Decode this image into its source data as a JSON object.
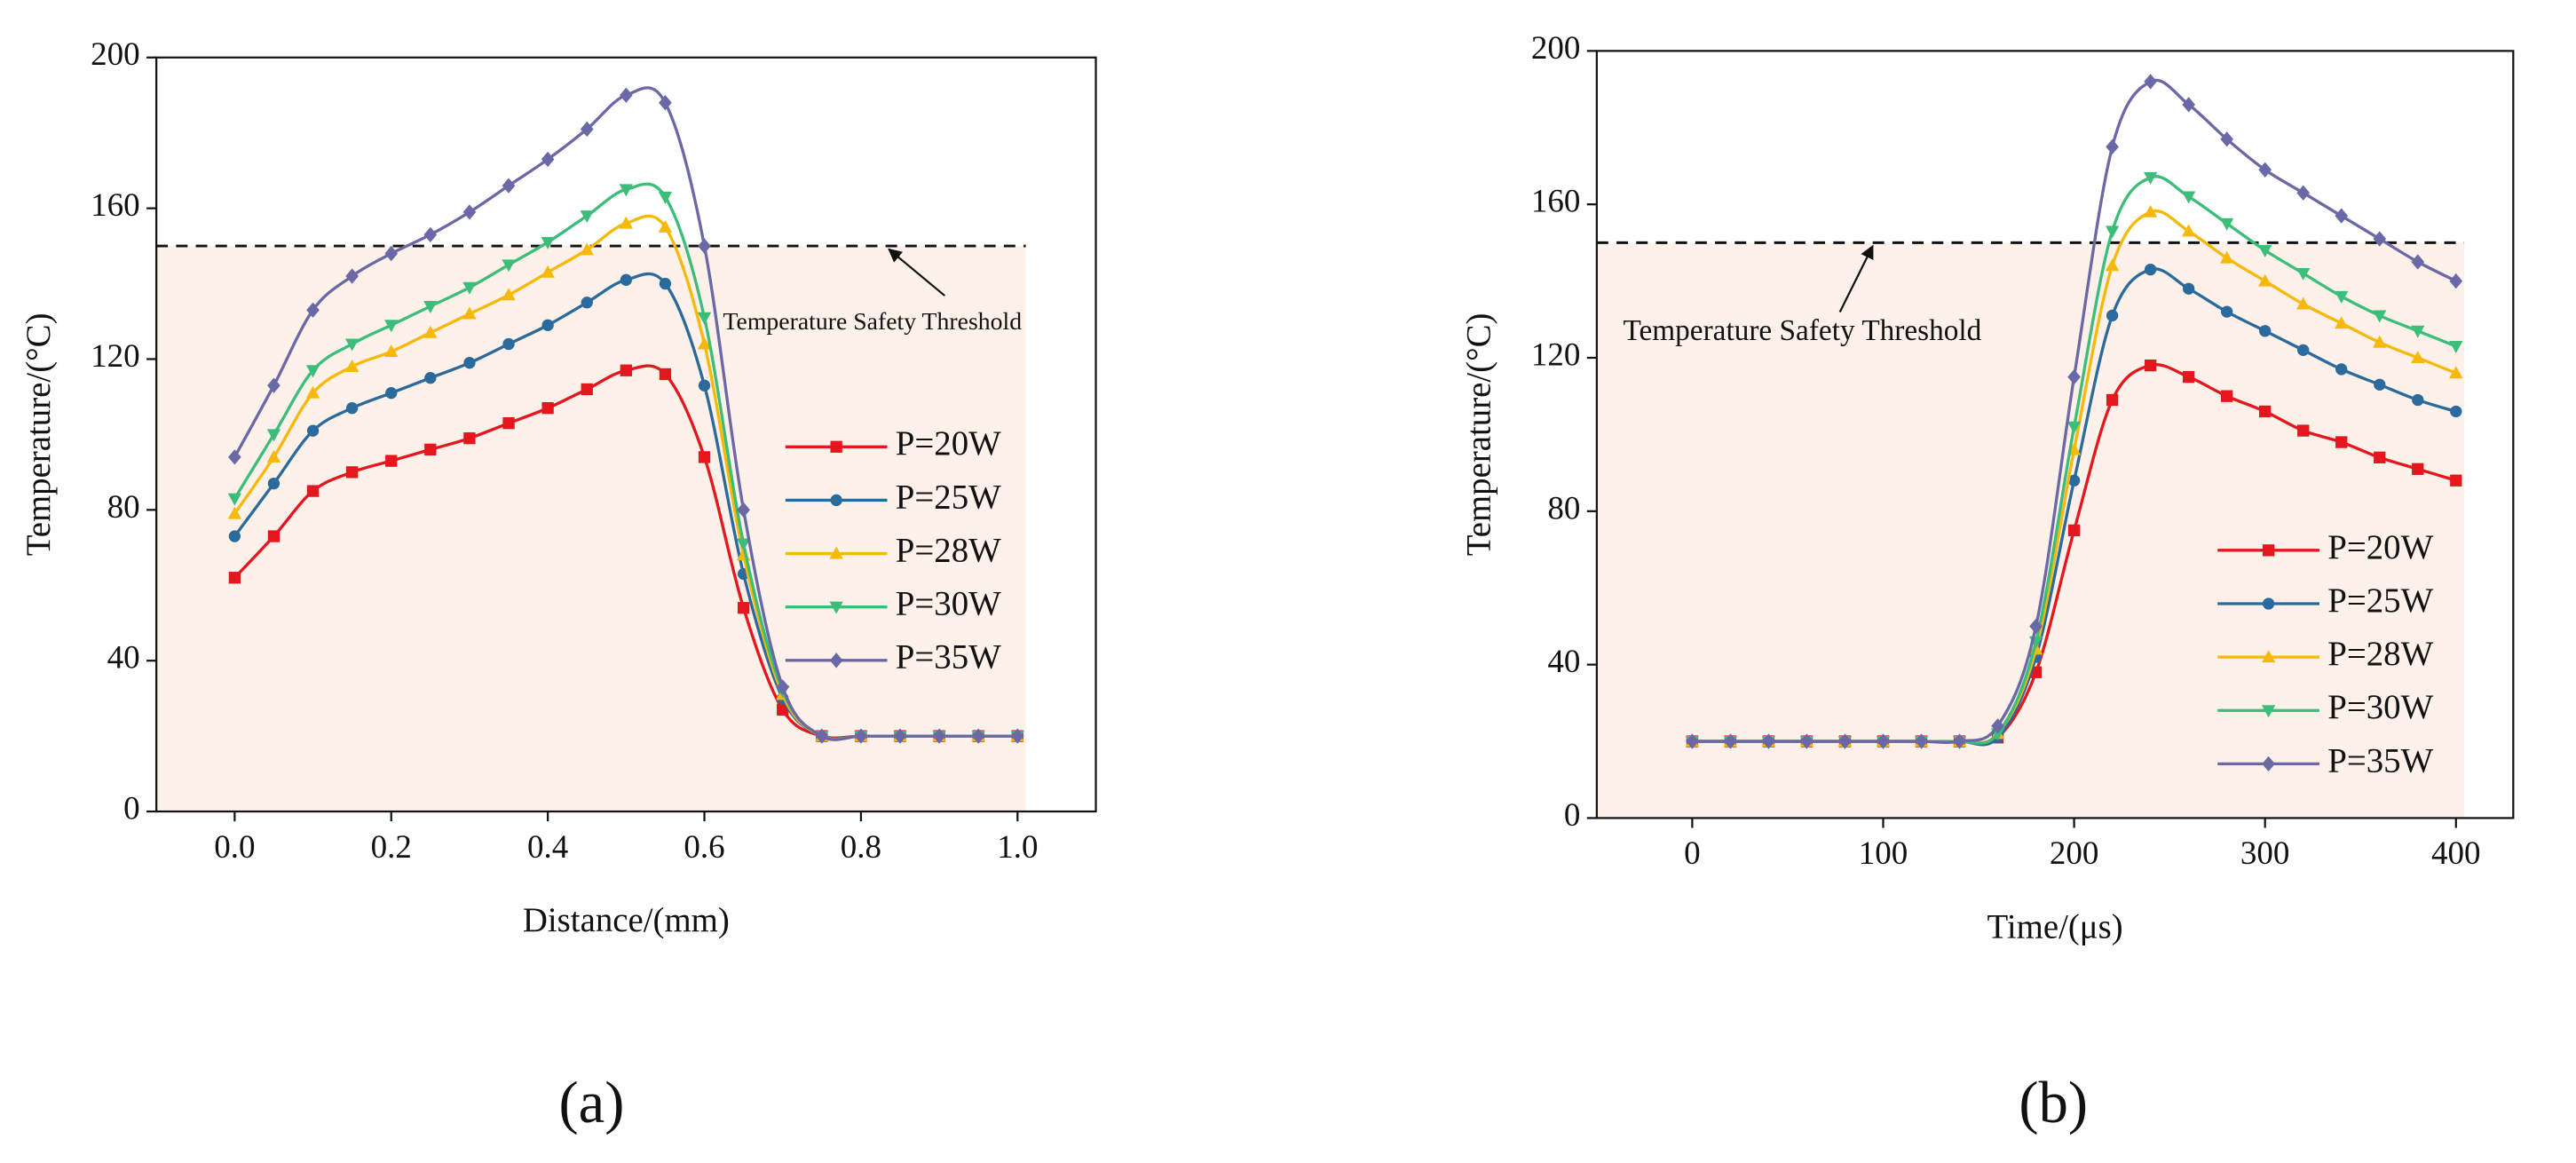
{
  "chart_data": [
    {
      "type": "line",
      "panel_label": "(a)",
      "xlabel": "Distance/(mm)",
      "ylabel": "Temperature/(°C)",
      "xlim": [
        -0.1,
        1.1
      ],
      "ylim": [
        0,
        200
      ],
      "xticks": [
        {
          "value": 0,
          "label": "0.0"
        },
        0.2,
        0.4,
        0.6,
        0.8,
        {
          "value": 1,
          "label": "1.0"
        }
      ],
      "yticks": [
        0,
        40,
        80,
        120,
        160,
        200
      ],
      "threshold": 150,
      "threshold_label": "Temperature Safety Threshold",
      "legend": "right",
      "x": [
        0,
        0.05,
        0.1,
        0.15,
        0.2,
        0.25,
        0.3,
        0.35,
        0.4,
        0.45,
        0.5,
        0.55,
        0.6,
        0.65,
        0.7,
        0.75,
        0.8,
        0.85,
        0.9,
        0.95,
        1.0
      ],
      "series": [
        {
          "name": "P=20W",
          "color": "#e5161e",
          "marker": "square",
          "values": [
            62,
            73,
            85,
            90,
            93,
            96,
            99,
            103,
            107,
            112,
            117,
            116,
            94,
            54,
            27,
            20,
            20,
            20,
            20,
            20,
            20
          ]
        },
        {
          "name": "P=25W",
          "color": "#2b6a9c",
          "marker": "circle",
          "values": [
            73,
            87,
            101,
            107,
            111,
            115,
            119,
            124,
            129,
            135,
            141,
            140,
            113,
            63,
            30,
            20,
            20,
            20,
            20,
            20,
            20
          ]
        },
        {
          "name": "P=28W",
          "color": "#f6b90a",
          "marker": "triangle-up",
          "values": [
            79,
            94,
            111,
            118,
            122,
            127,
            132,
            137,
            143,
            149,
            156,
            155,
            124,
            68,
            31,
            20,
            20,
            20,
            20,
            20,
            20
          ]
        },
        {
          "name": "P=30W",
          "color": "#3cbd7a",
          "marker": "triangle-down",
          "values": [
            83,
            100,
            117,
            124,
            129,
            134,
            139,
            145,
            151,
            158,
            165,
            163,
            131,
            71,
            32,
            20,
            20,
            20,
            20,
            20,
            20
          ]
        },
        {
          "name": "P=35W",
          "color": "#6a68a6",
          "marker": "diamond",
          "values": [
            94,
            113,
            133,
            142,
            148,
            153,
            159,
            166,
            173,
            181,
            190,
            188,
            150,
            80,
            33,
            20,
            20,
            20,
            20,
            20,
            20
          ]
        }
      ]
    },
    {
      "type": "line",
      "panel_label": "(b)",
      "xlabel": "Time/(μs)",
      "ylabel": "Temperature/(°C)",
      "xlim": [
        -50,
        430
      ],
      "ylim": [
        0,
        200
      ],
      "xticks": [
        0,
        100,
        200,
        300,
        400
      ],
      "yticks": [
        0,
        40,
        80,
        120,
        160,
        200
      ],
      "threshold": 150,
      "threshold_label": "Temperature Safety Threshold",
      "legend": "lower right",
      "x": [
        0,
        20,
        40,
        60,
        80,
        100,
        120,
        140,
        160,
        180,
        200,
        220,
        240,
        260,
        280,
        300,
        320,
        340,
        360,
        380,
        400
      ],
      "series": [
        {
          "name": "P=20W",
          "color": "#e5161e",
          "marker": "square",
          "values": [
            20,
            20,
            20,
            20,
            20,
            20,
            20,
            20,
            21,
            38,
            75,
            109,
            118,
            115,
            110,
            106,
            101,
            98,
            94,
            91,
            88
          ]
        },
        {
          "name": "P=25W",
          "color": "#2b6a9c",
          "marker": "circle",
          "values": [
            20,
            20,
            20,
            20,
            20,
            20,
            20,
            20,
            21,
            42,
            88,
            131,
            143,
            138,
            132,
            127,
            122,
            117,
            113,
            109,
            106
          ]
        },
        {
          "name": "P=28W",
          "color": "#f6b90a",
          "marker": "triangle-up",
          "values": [
            20,
            20,
            20,
            20,
            20,
            20,
            20,
            20,
            22,
            44,
            96,
            144,
            158,
            153,
            146,
            140,
            134,
            129,
            124,
            120,
            116
          ]
        },
        {
          "name": "P=30W",
          "color": "#3cbd7a",
          "marker": "triangle-down",
          "values": [
            20,
            20,
            20,
            20,
            20,
            20,
            20,
            20,
            22,
            46,
            102,
            153,
            167,
            162,
            155,
            148,
            142,
            136,
            131,
            127,
            123
          ]
        },
        {
          "name": "P=35W",
          "color": "#6a68a6",
          "marker": "diamond",
          "values": [
            20,
            20,
            20,
            20,
            20,
            20,
            20,
            20,
            24,
            50,
            115,
            175,
            192,
            186,
            177,
            169,
            163,
            157,
            151,
            145,
            140
          ]
        }
      ]
    }
  ]
}
